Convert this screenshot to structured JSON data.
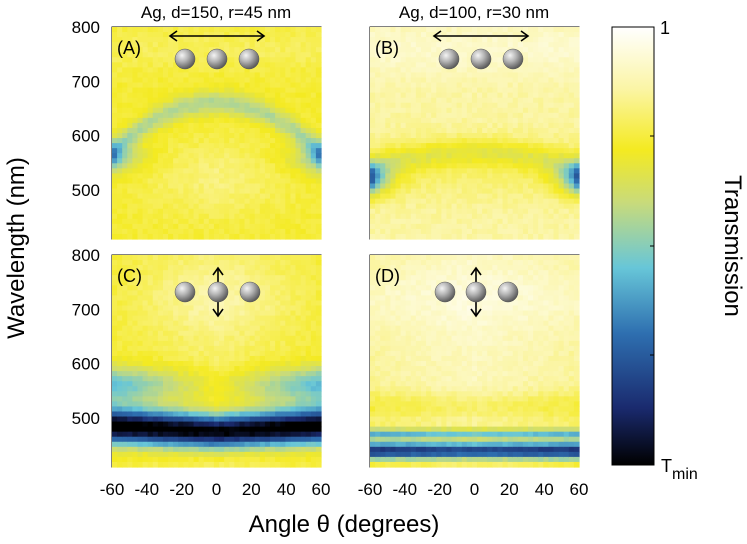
{
  "chart_data": [
    {
      "type": "heatmap",
      "panel_label": "(A)",
      "title": "Ag, d=150, r=45 nm",
      "xlabel": "Angle θ (degrees)",
      "ylabel": "Wavelength (nm)",
      "xlim": [
        -60,
        60
      ],
      "ylim": [
        410,
        800
      ],
      "x_ticks": [
        -60,
        -40,
        -20,
        0,
        20,
        40,
        60
      ],
      "y_ticks": [
        500,
        600,
        700,
        800
      ],
      "polarization": "horizontal",
      "features": {
        "min_band_center_nm": 560,
        "min_band_edge_angle_deg": 60,
        "min_depth": 0.3,
        "arch_peak_nm": 640
      }
    },
    {
      "type": "heatmap",
      "panel_label": "(B)",
      "title": "Ag, d=100, r=30 nm",
      "xlabel": "Angle θ (degrees)",
      "ylabel": "Wavelength (nm)",
      "xlim": [
        -60,
        60
      ],
      "ylim": [
        410,
        800
      ],
      "x_ticks": [
        -60,
        -40,
        -20,
        0,
        20,
        40,
        60
      ],
      "y_ticks": [
        500,
        600,
        700,
        800
      ],
      "polarization": "horizontal",
      "features": {
        "min_band_center_nm": 520,
        "min_band_edge_angle_deg": 60,
        "min_depth": 0.1,
        "arch_peak_nm": 570
      }
    },
    {
      "type": "heatmap",
      "panel_label": "(C)",
      "title": "Ag, d=150, r=45 nm",
      "xlabel": "Angle θ (degrees)",
      "ylabel": "Wavelength (nm)",
      "xlim": [
        -60,
        60
      ],
      "ylim": [
        410,
        800
      ],
      "x_ticks": [
        -60,
        -40,
        -20,
        0,
        20,
        40,
        60
      ],
      "y_ticks": [
        500,
        600,
        700,
        800
      ],
      "polarization": "vertical",
      "features": {
        "min_band_center_nm": 475,
        "min_depth": 0.0,
        "band_width_nm": 55
      }
    },
    {
      "type": "heatmap",
      "panel_label": "(D)",
      "title": "Ag, d=100, r=30 nm",
      "xlabel": "Angle θ (degrees)",
      "ylabel": "Wavelength (nm)",
      "xlim": [
        -60,
        60
      ],
      "ylim": [
        410,
        800
      ],
      "x_ticks": [
        -60,
        -40,
        -20,
        0,
        20,
        40,
        60
      ],
      "y_ticks": [
        500,
        600,
        700,
        800
      ],
      "polarization": "vertical",
      "features": {
        "min_band_center_nm": 440,
        "min_depth": 0.0,
        "band_width_nm": 30
      }
    }
  ],
  "figure": {
    "xlabel": "Angle θ (degrees)",
    "ylabel": "Wavelength (nm)",
    "x_ticks": [
      -60,
      -40,
      -20,
      0,
      20,
      40,
      60
    ],
    "y_ticks": [
      500,
      600,
      700,
      800
    ],
    "col_titles": [
      "Ag, d=150, r=45 nm",
      "Ag, d=100, r=30 nm"
    ]
  },
  "colorbar": {
    "label": "Transmission",
    "top_label": "1",
    "bottom_label_main": "T",
    "bottom_label_sub": "min",
    "colors": [
      "#000000",
      "#1a2a6e",
      "#2e6fb0",
      "#67c6d8",
      "#c9db7a",
      "#f4ea21",
      "#fbf5a6",
      "#ffffff"
    ]
  }
}
